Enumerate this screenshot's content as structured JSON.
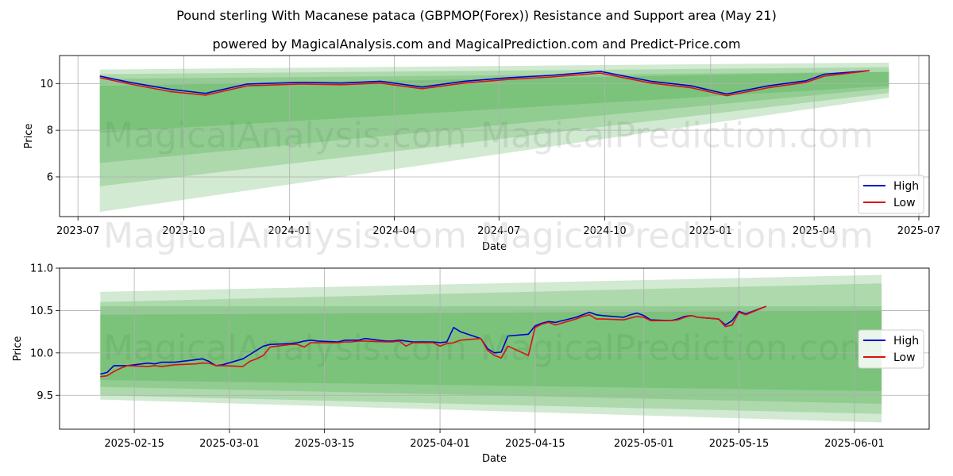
{
  "title": "Pound sterling With Macanese pataca (GBPMOP(Forex)) Resistance and Support area (May 21)",
  "subtitle": "powered by MagicalAnalysis.com and MagicalPrediction.com and Predict-Price.com",
  "watermark": [
    "MagicalAnalysis.com",
    "MagicalPrediction.com"
  ],
  "colors": {
    "high": "#0000cc",
    "low": "#dd1111",
    "band": "#2ca02c"
  },
  "chart_data": [
    {
      "type": "line",
      "title": "",
      "xlabel": "Date",
      "ylabel": "Price",
      "xlim": [
        "2023-06-15",
        "2025-07-10"
      ],
      "ylim": [
        4.3,
        11.2
      ],
      "xticks": [
        "2023-07",
        "2023-10",
        "2024-01",
        "2024-04",
        "2024-07",
        "2024-10",
        "2025-01",
        "2025-04",
        "2025-07"
      ],
      "yticks": [
        6,
        8,
        10
      ],
      "grid": true,
      "legend": "bottom-right",
      "series": [
        {
          "name": "High",
          "x": [
            "2023-07-20",
            "2023-08-15",
            "2023-09-20",
            "2023-10-20",
            "2023-11-25",
            "2024-01-10",
            "2024-02-15",
            "2024-03-20",
            "2024-04-25",
            "2024-06-01",
            "2024-07-10",
            "2024-08-15",
            "2024-09-27",
            "2024-11-10",
            "2024-12-15",
            "2025-01-15",
            "2025-02-20",
            "2025-03-25",
            "2025-04-10",
            "2025-05-19"
          ],
          "y": [
            10.32,
            10.05,
            9.75,
            9.58,
            9.98,
            10.05,
            10.02,
            10.1,
            9.85,
            10.1,
            10.25,
            10.35,
            10.52,
            10.1,
            9.9,
            9.55,
            9.9,
            10.12,
            10.4,
            10.55
          ]
        },
        {
          "name": "Low",
          "x": [
            "2023-07-20",
            "2023-08-15",
            "2023-09-20",
            "2023-10-20",
            "2023-11-25",
            "2024-01-10",
            "2024-02-15",
            "2024-03-20",
            "2024-04-25",
            "2024-06-01",
            "2024-07-10",
            "2024-08-15",
            "2024-09-27",
            "2024-11-10",
            "2024-12-15",
            "2025-01-15",
            "2025-02-20",
            "2025-03-25",
            "2025-04-10",
            "2025-05-19"
          ],
          "y": [
            10.25,
            9.98,
            9.65,
            9.5,
            9.9,
            9.98,
            9.95,
            10.02,
            9.78,
            10.02,
            10.18,
            10.28,
            10.45,
            10.02,
            9.82,
            9.48,
            9.82,
            10.05,
            10.32,
            10.55
          ]
        }
      ],
      "bands": [
        {
          "start": "2023-07-20",
          "end": "2025-06-05",
          "lower": [
            4.5,
            9.4
          ],
          "upper": [
            10.6,
            10.9
          ]
        },
        {
          "start": "2023-07-20",
          "end": "2025-06-05",
          "lower": [
            5.6,
            9.6
          ],
          "upper": [
            10.4,
            10.7
          ]
        },
        {
          "start": "2023-07-20",
          "end": "2025-06-05",
          "lower": [
            6.6,
            9.8
          ],
          "upper": [
            10.2,
            10.5
          ]
        },
        {
          "start": "2023-07-20",
          "end": "2025-06-05",
          "lower": [
            7.9,
            9.9
          ],
          "upper": [
            9.9,
            10.5
          ]
        }
      ]
    },
    {
      "type": "line",
      "title": "",
      "xlabel": "Date",
      "ylabel": "Price",
      "xlim": [
        "2025-02-04",
        "2025-06-12"
      ],
      "ylim": [
        9.1,
        11.0
      ],
      "xticks": [
        "2025-02-15",
        "2025-03-01",
        "2025-03-15",
        "2025-04-01",
        "2025-04-15",
        "2025-05-01",
        "2025-05-15",
        "2025-06-01"
      ],
      "yticks": [
        9.5,
        10.0,
        10.5,
        11.0
      ],
      "grid": true,
      "legend": "center-right",
      "series": [
        {
          "name": "High",
          "x": [
            "2025-02-10",
            "2025-02-11",
            "2025-02-12",
            "2025-02-13",
            "2025-02-14",
            "2025-02-17",
            "2025-02-18",
            "2025-02-19",
            "2025-02-20",
            "2025-02-21",
            "2025-02-24",
            "2025-02-25",
            "2025-02-26",
            "2025-02-27",
            "2025-02-28",
            "2025-03-03",
            "2025-03-04",
            "2025-03-05",
            "2025-03-06",
            "2025-03-07",
            "2025-03-10",
            "2025-03-11",
            "2025-03-12",
            "2025-03-13",
            "2025-03-14",
            "2025-03-17",
            "2025-03-18",
            "2025-03-19",
            "2025-03-20",
            "2025-03-21",
            "2025-03-24",
            "2025-03-25",
            "2025-03-26",
            "2025-03-27",
            "2025-03-28",
            "2025-03-31",
            "2025-04-01",
            "2025-04-02",
            "2025-04-03",
            "2025-04-04",
            "2025-04-07",
            "2025-04-08",
            "2025-04-09",
            "2025-04-10",
            "2025-04-11",
            "2025-04-14",
            "2025-04-15",
            "2025-04-16",
            "2025-04-17",
            "2025-04-18",
            "2025-04-21",
            "2025-04-22",
            "2025-04-23",
            "2025-04-24",
            "2025-04-25",
            "2025-04-28",
            "2025-04-29",
            "2025-04-30",
            "2025-05-01",
            "2025-05-02",
            "2025-05-05",
            "2025-05-06",
            "2025-05-07",
            "2025-05-08",
            "2025-05-09",
            "2025-05-12",
            "2025-05-13",
            "2025-05-14",
            "2025-05-15",
            "2025-05-16",
            "2025-05-19"
          ],
          "y": [
            9.75,
            9.77,
            9.85,
            9.85,
            9.85,
            9.88,
            9.87,
            9.89,
            9.89,
            9.89,
            9.92,
            9.93,
            9.9,
            9.85,
            9.86,
            9.93,
            9.98,
            10.03,
            10.08,
            10.1,
            10.11,
            10.12,
            10.14,
            10.15,
            10.14,
            10.13,
            10.15,
            10.15,
            10.15,
            10.17,
            10.14,
            10.14,
            10.15,
            10.14,
            10.13,
            10.13,
            10.12,
            10.13,
            10.3,
            10.25,
            10.17,
            10.05,
            10.0,
            10.01,
            10.2,
            10.22,
            10.32,
            10.35,
            10.37,
            10.36,
            10.42,
            10.45,
            10.48,
            10.45,
            10.44,
            10.42,
            10.45,
            10.47,
            10.44,
            10.39,
            10.38,
            10.4,
            10.43,
            10.44,
            10.42,
            10.4,
            10.33,
            10.38,
            10.49,
            10.46,
            10.55
          ]
        },
        {
          "name": "Low",
          "x": [
            "2025-02-10",
            "2025-02-11",
            "2025-02-12",
            "2025-02-13",
            "2025-02-14",
            "2025-02-17",
            "2025-02-18",
            "2025-02-19",
            "2025-02-20",
            "2025-02-21",
            "2025-02-24",
            "2025-02-25",
            "2025-02-26",
            "2025-02-27",
            "2025-02-28",
            "2025-03-03",
            "2025-03-04",
            "2025-03-05",
            "2025-03-06",
            "2025-03-07",
            "2025-03-10",
            "2025-03-11",
            "2025-03-12",
            "2025-03-13",
            "2025-03-14",
            "2025-03-17",
            "2025-03-18",
            "2025-03-19",
            "2025-03-20",
            "2025-03-21",
            "2025-03-24",
            "2025-03-25",
            "2025-03-26",
            "2025-03-27",
            "2025-03-28",
            "2025-03-31",
            "2025-04-01",
            "2025-04-02",
            "2025-04-03",
            "2025-04-04",
            "2025-04-07",
            "2025-04-08",
            "2025-04-09",
            "2025-04-10",
            "2025-04-11",
            "2025-04-14",
            "2025-04-15",
            "2025-04-16",
            "2025-04-17",
            "2025-04-18",
            "2025-04-21",
            "2025-04-22",
            "2025-04-23",
            "2025-04-24",
            "2025-04-25",
            "2025-04-28",
            "2025-04-29",
            "2025-04-30",
            "2025-05-01",
            "2025-05-02",
            "2025-05-05",
            "2025-05-06",
            "2025-05-07",
            "2025-05-08",
            "2025-05-09",
            "2025-05-12",
            "2025-05-13",
            "2025-05-14",
            "2025-05-15",
            "2025-05-16",
            "2025-05-19"
          ],
          "y": [
            9.72,
            9.73,
            9.78,
            9.82,
            9.85,
            9.84,
            9.85,
            9.84,
            9.85,
            9.86,
            9.87,
            9.88,
            9.88,
            9.85,
            9.85,
            9.84,
            9.9,
            9.93,
            9.97,
            10.07,
            10.1,
            10.1,
            10.07,
            10.12,
            10.12,
            10.12,
            10.13,
            10.13,
            10.14,
            10.14,
            10.13,
            10.13,
            10.14,
            10.08,
            10.12,
            10.12,
            10.08,
            10.11,
            10.12,
            10.15,
            10.17,
            10.03,
            9.97,
            9.94,
            10.08,
            9.97,
            10.3,
            10.34,
            10.36,
            10.33,
            10.4,
            10.43,
            10.45,
            10.4,
            10.4,
            10.39,
            10.41,
            10.43,
            10.42,
            10.38,
            10.38,
            10.39,
            10.42,
            10.44,
            10.42,
            10.4,
            10.31,
            10.33,
            10.48,
            10.45,
            10.55
          ]
        }
      ],
      "bands": [
        {
          "start": "2025-02-10",
          "end": "2025-06-05",
          "lower": [
            9.45,
            9.18
          ],
          "upper": [
            10.72,
            10.92
          ]
        },
        {
          "start": "2025-02-10",
          "end": "2025-06-05",
          "lower": [
            9.5,
            9.28
          ],
          "upper": [
            10.6,
            10.82
          ]
        },
        {
          "start": "2025-02-10",
          "end": "2025-06-05",
          "lower": [
            9.6,
            9.4
          ],
          "upper": [
            10.55,
            10.55
          ]
        },
        {
          "start": "2025-02-10",
          "end": "2025-06-05",
          "lower": [
            9.68,
            9.55
          ],
          "upper": [
            10.45,
            10.5
          ]
        }
      ]
    }
  ],
  "legend": {
    "high": "High",
    "low": "Low"
  }
}
